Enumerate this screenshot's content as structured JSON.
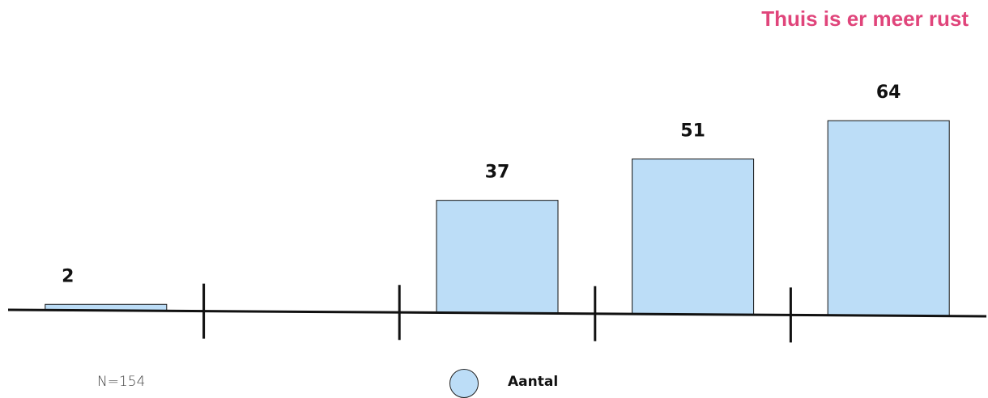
{
  "chart_data": {
    "type": "bar",
    "title": "Thuis is er meer rust",
    "categories": [
      "",
      "",
      "",
      "",
      ""
    ],
    "series": [
      {
        "name": "Aantal",
        "values": [
          2,
          0,
          37,
          51,
          64
        ]
      }
    ],
    "ylim": [
      0,
      64
    ],
    "grid": false,
    "legend": "bottom-center"
  },
  "note": "N=154",
  "colors": {
    "bar": "#bcddf7",
    "title": "#e0457b"
  }
}
